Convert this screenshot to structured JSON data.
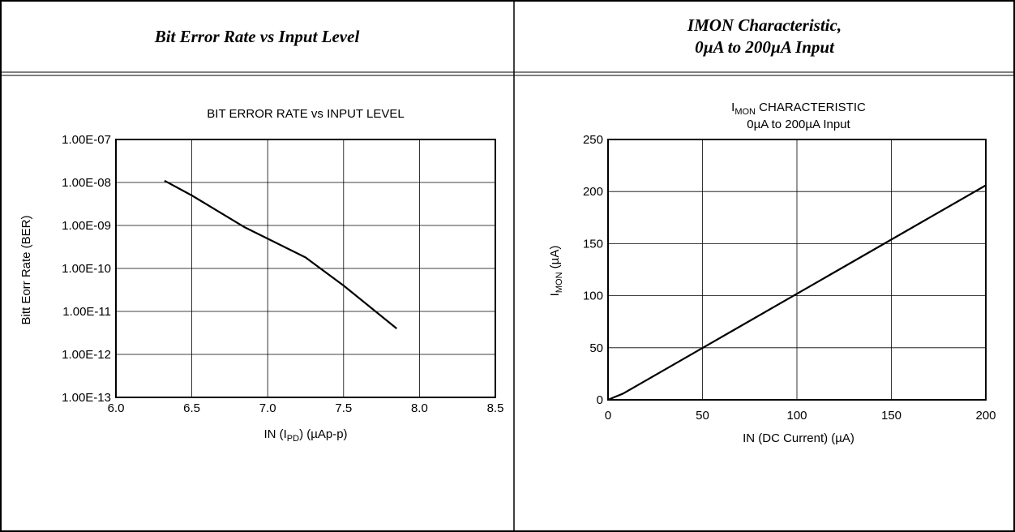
{
  "headers": {
    "left": "Bit Error Rate vs Input Level",
    "right_line1": "IMON Characteristic,",
    "right_line2": "0µA to 200µA Input"
  },
  "chart_data": [
    {
      "type": "line",
      "title": "BIT ERROR RATE vs INPUT LEVEL",
      "xlabel_main": "IN (I",
      "xlabel_sub": "PD",
      "xlabel_tail": ") (µAp-p)",
      "ylabel": "Bitt Eorr Rate (BER)",
      "x_ticks": [
        "6.0",
        "6.5",
        "7.0",
        "7.5",
        "8.0",
        "8.5"
      ],
      "y_ticks": [
        "1.00E-07",
        "1.00E-08",
        "1.00E-09",
        "1.00E-10",
        "1.00E-11",
        "1.00E-12",
        "1.00E-13"
      ],
      "xlim": [
        6.0,
        8.5
      ],
      "ylim": [
        1e-13,
        1e-07
      ],
      "yscale": "log",
      "grid": true,
      "series": [
        {
          "x": [
            6.32,
            6.5,
            6.85,
            7.25,
            7.5,
            7.85
          ],
          "y": [
            1.1e-08,
            5e-09,
            9e-10,
            1.8e-10,
            4e-11,
            4e-12
          ]
        }
      ]
    },
    {
      "type": "line",
      "title_main": "I",
      "title_sub": "MON",
      "title_tail": " CHARACTERISTIC",
      "subtitle": "0µA to 200µA Input",
      "xlabel": "IN (DC Current) (µA)",
      "ylabel_main": "I",
      "ylabel_sub": "MON",
      "ylabel_tail": " (µA)",
      "x_ticks": [
        "0",
        "50",
        "100",
        "150",
        "200"
      ],
      "y_ticks": [
        "0",
        "50",
        "100",
        "150",
        "200",
        "250"
      ],
      "xlim": [
        0,
        200
      ],
      "ylim": [
        0,
        250
      ],
      "grid": true,
      "series": [
        {
          "x": [
            0,
            8,
            200
          ],
          "y": [
            0,
            6,
            206
          ]
        }
      ]
    }
  ]
}
